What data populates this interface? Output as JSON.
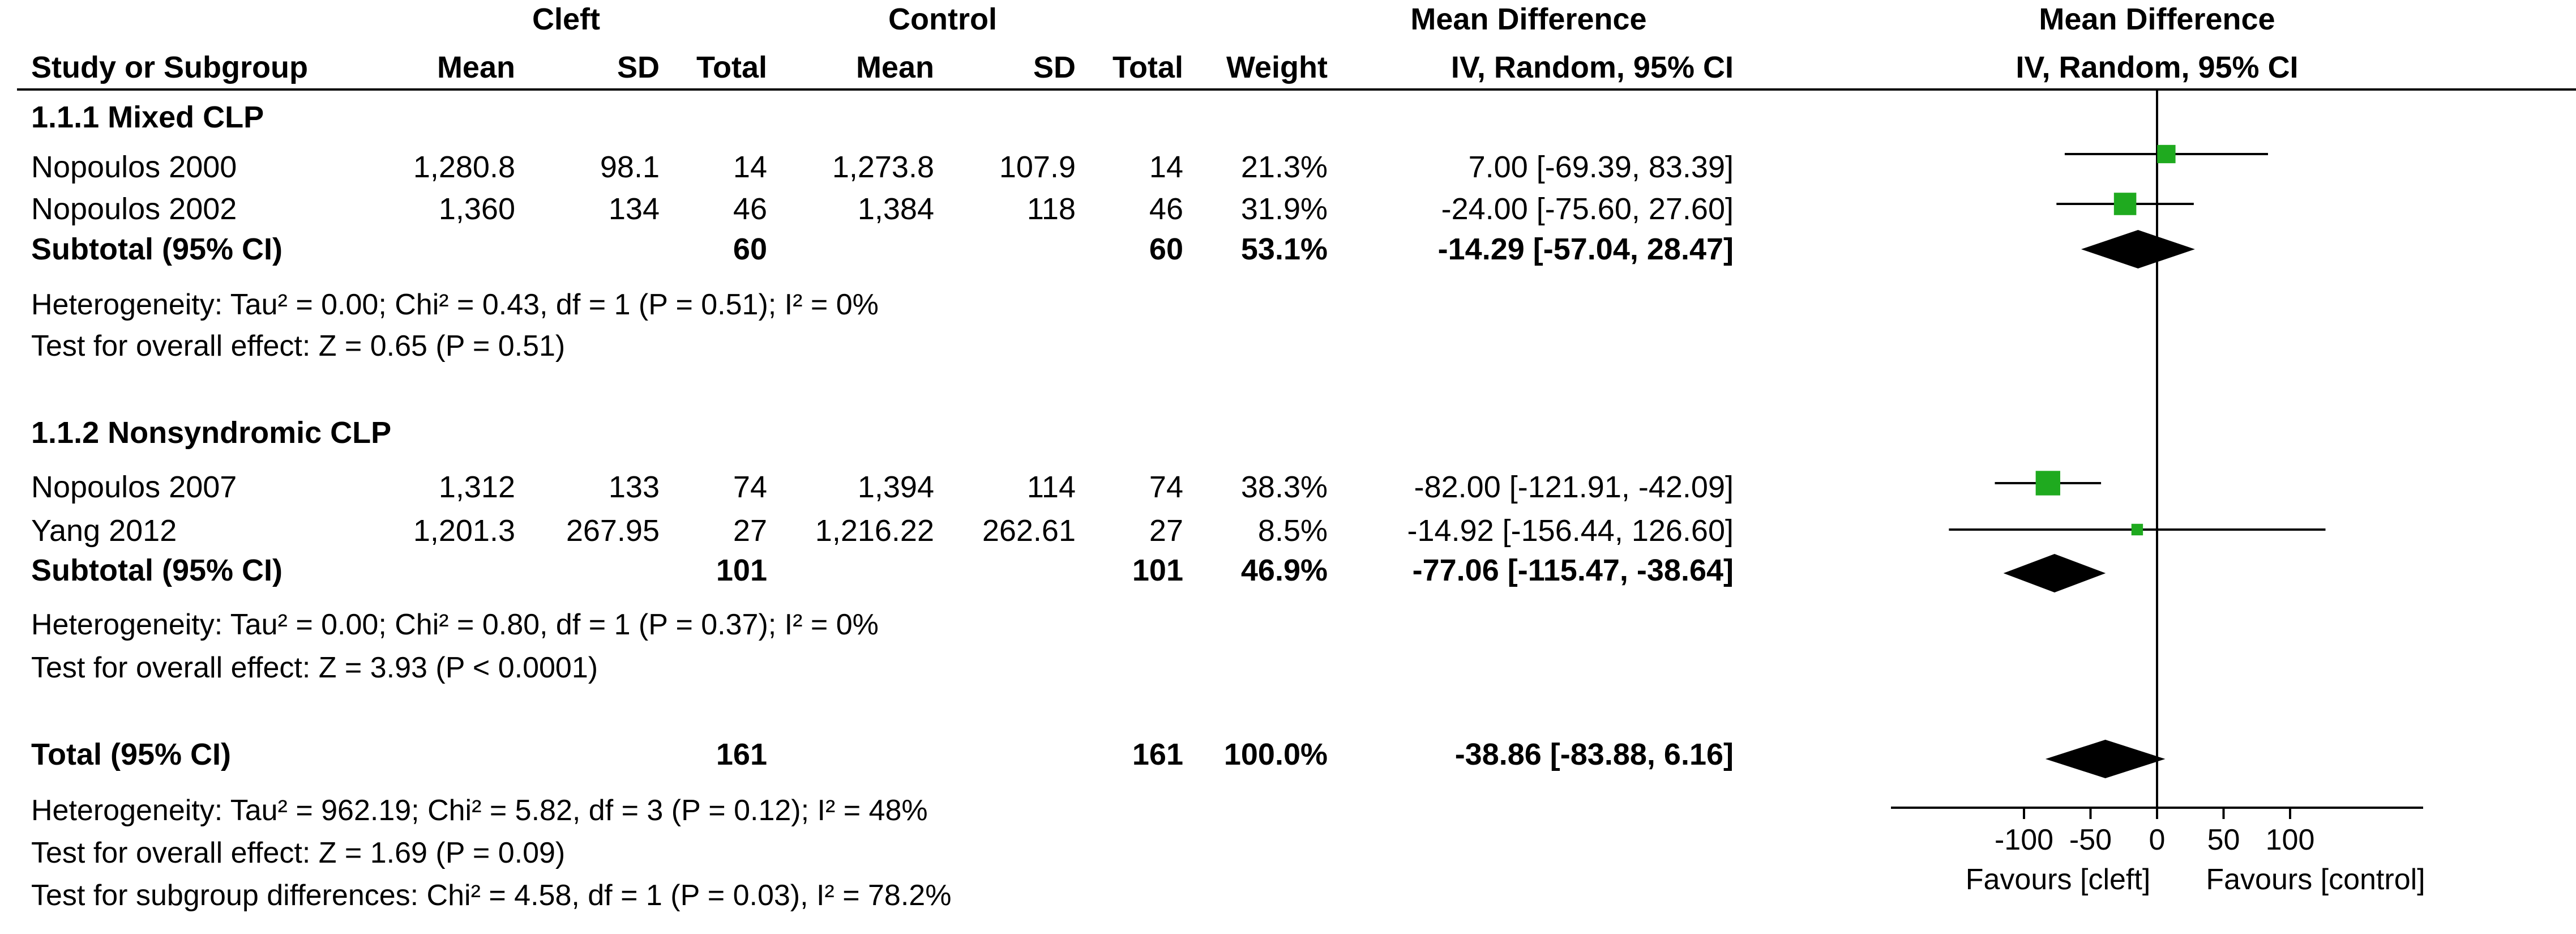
{
  "colors": {
    "point": "#1faa1f",
    "diamond": "#000000",
    "axis": "#000000"
  },
  "header": {
    "group1": "Cleft",
    "group2": "Control",
    "effect_title": "Mean Difference",
    "effect_method": "IV, Random, 95% CI",
    "plot_title": "Mean Difference",
    "plot_method": "IV, Random, 95% CI",
    "col_study": "Study or Subgroup",
    "col_mean1": "Mean",
    "col_sd1": "SD",
    "col_total1": "Total",
    "col_mean2": "Mean",
    "col_sd2": "SD",
    "col_total2": "Total",
    "col_weight": "Weight"
  },
  "subgroups": [
    {
      "title": "1.1.1 Mixed CLP",
      "studies": [
        {
          "name": "Nopoulos 2000",
          "mean1": "1,280.8",
          "sd1": "98.1",
          "n1": "14",
          "mean2": "1,273.8",
          "sd2": "107.9",
          "n2": "14",
          "weight": "21.3%",
          "effect_text": "7.00 [-69.39, 83.39]"
        },
        {
          "name": "Nopoulos 2002",
          "mean1": "1,360",
          "sd1": "134",
          "n1": "46",
          "mean2": "1,384",
          "sd2": "118",
          "n2": "46",
          "weight": "31.9%",
          "effect_text": "-24.00 [-75.60, 27.60]"
        }
      ],
      "subtotal": {
        "label": "Subtotal (95% CI)",
        "n1": "60",
        "n2": "60",
        "weight": "53.1%",
        "effect_text": "-14.29 [-57.04, 28.47]"
      },
      "heterogeneity": "Heterogeneity: Tau² = 0.00; Chi² = 0.43, df = 1 (P = 0.51); I² = 0%",
      "overall": "Test for overall effect: Z = 0.65 (P = 0.51)"
    },
    {
      "title": "1.1.2 Nonsyndromic CLP",
      "studies": [
        {
          "name": "Nopoulos 2007",
          "mean1": "1,312",
          "sd1": "133",
          "n1": "74",
          "mean2": "1,394",
          "sd2": "114",
          "n2": "74",
          "weight": "38.3%",
          "effect_text": "-82.00 [-121.91, -42.09]"
        },
        {
          "name": "Yang 2012",
          "mean1": "1,201.3",
          "sd1": "267.95",
          "n1": "27",
          "mean2": "1,216.22",
          "sd2": "262.61",
          "n2": "27",
          "weight": "8.5%",
          "effect_text": "-14.92 [-156.44, 126.60]"
        }
      ],
      "subtotal": {
        "label": "Subtotal (95% CI)",
        "n1": "101",
        "n2": "101",
        "weight": "46.9%",
        "effect_text": "-77.06 [-115.47, -38.64]"
      },
      "heterogeneity": "Heterogeneity: Tau² = 0.00; Chi² = 0.80, df = 1 (P = 0.37); I² = 0%",
      "overall": "Test for overall effect: Z = 3.93 (P < 0.0001)"
    }
  ],
  "total": {
    "label": "Total (95% CI)",
    "n1": "161",
    "n2": "161",
    "weight": "100.0%",
    "effect_text": "-38.86 [-83.88, 6.16]",
    "heterogeneity": "Heterogeneity: Tau² = 962.19; Chi² = 5.82, df = 3 (P = 0.12); I² = 48%",
    "overall": "Test for overall effect: Z = 1.69 (P = 0.09)",
    "subgroup_diff": "Test for subgroup differences: Chi² = 4.58, df = 1 (P = 0.03), I² = 78.2%"
  },
  "axis": {
    "ticks": [
      "-100",
      "-50",
      "0",
      "50",
      "100"
    ],
    "favours_left": "Favours [cleft]",
    "favours_right": "Favours [control]"
  },
  "chart_data": {
    "type": "forest",
    "x_range": [
      -200,
      200
    ],
    "null_value": 0,
    "xticks": [
      -100,
      -50,
      0,
      50,
      100
    ],
    "studies": [
      {
        "name": "Nopoulos 2000",
        "md": 7.0,
        "lo": -69.39,
        "hi": 83.39,
        "weight": 21.3
      },
      {
        "name": "Nopoulos 2002",
        "md": -24.0,
        "lo": -75.6,
        "hi": 27.6,
        "weight": 31.9
      },
      {
        "name": "Nopoulos 2007",
        "md": -82.0,
        "lo": -121.91,
        "hi": -42.09,
        "weight": 38.3
      },
      {
        "name": "Yang 2012",
        "md": -14.92,
        "lo": -156.44,
        "hi": 126.6,
        "weight": 8.5
      }
    ],
    "pooled": [
      {
        "name": "Subtotal 1.1.1 Mixed CLP",
        "md": -14.29,
        "lo": -57.04,
        "hi": 28.47
      },
      {
        "name": "Subtotal 1.1.2 Nonsyndromic CLP",
        "md": -77.06,
        "lo": -115.47,
        "hi": -38.64
      },
      {
        "name": "Total",
        "md": -38.86,
        "lo": -83.88,
        "hi": 6.16
      }
    ]
  }
}
